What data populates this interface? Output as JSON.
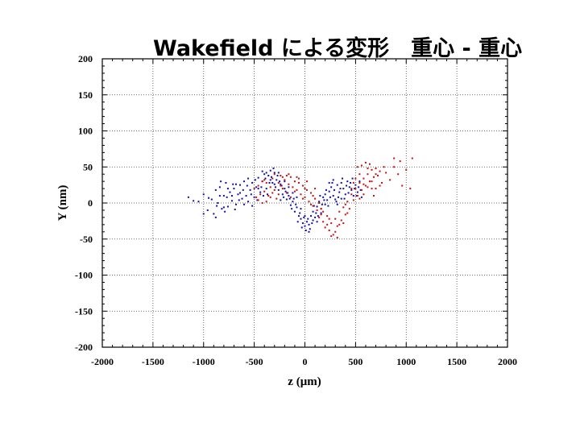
{
  "chart_data": {
    "type": "scatter",
    "title": "Wakefield による変形　重心 - 重心",
    "xlabel": "z (μm)",
    "ylabel": "Y (nm)",
    "xlim": [
      -2000,
      2000
    ],
    "ylim": [
      -200,
      200
    ],
    "xticks": [
      -2000,
      -1500,
      -1000,
      -500,
      0,
      500,
      1000,
      1500,
      2000
    ],
    "yticks": [
      200,
      150,
      100,
      50,
      0,
      -50,
      -100,
      -150,
      -200
    ],
    "xtick_labels": [
      "-2000",
      "-1500",
      "-1000",
      "-500",
      "0",
      "500",
      "1000",
      "1500",
      "2000"
    ],
    "ytick_labels": [
      "200",
      "150",
      "100",
      "50",
      "0",
      "-50",
      "-100",
      "-150",
      "-200"
    ],
    "grid": true,
    "series": [
      {
        "name": "blue",
        "color": "#1010a8",
        "points": [
          [
            -1150,
            8
          ],
          [
            -1100,
            3
          ],
          [
            -1050,
            2
          ],
          [
            -1000,
            12
          ],
          [
            -960,
            -10
          ],
          [
            -920,
            5
          ],
          [
            -900,
            -15
          ],
          [
            -880,
            18
          ],
          [
            -860,
            0
          ],
          [
            -840,
            22
          ],
          [
            -820,
            -8
          ],
          [
            -800,
            10
          ],
          [
            -780,
            28
          ],
          [
            -760,
            -5
          ],
          [
            -740,
            15
          ],
          [
            -720,
            3
          ],
          [
            -700,
            20
          ],
          [
            -680,
            -2
          ],
          [
            -660,
            12
          ],
          [
            -640,
            25
          ],
          [
            -620,
            6
          ],
          [
            -600,
            30
          ],
          [
            -580,
            10
          ],
          [
            -560,
            2
          ],
          [
            -540,
            18
          ],
          [
            -520,
            28
          ],
          [
            -500,
            8
          ],
          [
            -480,
            22
          ],
          [
            -460,
            35
          ],
          [
            -440,
            15
          ],
          [
            -420,
            30
          ],
          [
            -400,
            40
          ],
          [
            -380,
            20
          ],
          [
            -360,
            38
          ],
          [
            -340,
            45
          ],
          [
            -320,
            28
          ],
          [
            -300,
            42
          ],
          [
            -280,
            32
          ],
          [
            -260,
            18
          ],
          [
            -240,
            26
          ],
          [
            -220,
            12
          ],
          [
            -200,
            20
          ],
          [
            -180,
            5
          ],
          [
            -160,
            10
          ],
          [
            -140,
            -3
          ],
          [
            -120,
            2
          ],
          [
            -100,
            -12
          ],
          [
            -80,
            -6
          ],
          [
            -60,
            -18
          ],
          [
            -40,
            -22
          ],
          [
            -20,
            -28
          ],
          [
            0,
            -32
          ],
          [
            20,
            -26
          ],
          [
            40,
            -30
          ],
          [
            60,
            -18
          ],
          [
            80,
            -12
          ],
          [
            100,
            -20
          ],
          [
            120,
            -5
          ],
          [
            140,
            2
          ],
          [
            160,
            -8
          ],
          [
            180,
            8
          ],
          [
            200,
            12
          ],
          [
            220,
            4
          ],
          [
            240,
            16
          ],
          [
            260,
            22
          ],
          [
            280,
            10
          ],
          [
            300,
            5
          ],
          [
            320,
            25
          ],
          [
            340,
            15
          ],
          [
            360,
            28
          ],
          [
            380,
            20
          ],
          [
            400,
            12
          ],
          [
            420,
            30
          ],
          [
            440,
            22
          ],
          [
            460,
            18
          ],
          [
            480,
            10
          ],
          [
            500,
            25
          ],
          [
            520,
            15
          ],
          [
            540,
            30
          ],
          [
            560,
            8
          ],
          [
            -1000,
            -15
          ],
          [
            -950,
            7
          ],
          [
            -870,
            -4
          ],
          [
            -830,
            30
          ],
          [
            -790,
            -12
          ],
          [
            -770,
            8
          ],
          [
            -710,
            26
          ],
          [
            -690,
            -9
          ],
          [
            -650,
            4
          ],
          [
            -610,
            18
          ],
          [
            -570,
            24
          ],
          [
            -530,
            12
          ],
          [
            -490,
            32
          ],
          [
            -470,
            4
          ],
          [
            -430,
            22
          ],
          [
            -410,
            10
          ],
          [
            -390,
            34
          ],
          [
            -370,
            12
          ],
          [
            -350,
            28
          ],
          [
            -330,
            36
          ],
          [
            -310,
            48
          ],
          [
            -290,
            22
          ],
          [
            -270,
            38
          ],
          [
            -250,
            30
          ],
          [
            -230,
            24
          ],
          [
            -210,
            8
          ],
          [
            -190,
            16
          ],
          [
            -170,
            14
          ],
          [
            -150,
            6
          ],
          [
            -130,
            -8
          ],
          [
            -110,
            6
          ],
          [
            -90,
            -2
          ],
          [
            -70,
            -26
          ],
          [
            -50,
            -14
          ],
          [
            -30,
            -34
          ],
          [
            -10,
            -20
          ],
          [
            10,
            -38
          ],
          [
            30,
            -22
          ],
          [
            50,
            -36
          ],
          [
            70,
            -28
          ],
          [
            90,
            -4
          ],
          [
            110,
            -14
          ],
          [
            130,
            -18
          ],
          [
            150,
            10
          ],
          [
            170,
            -2
          ],
          [
            190,
            4
          ],
          [
            210,
            18
          ],
          [
            230,
            -4
          ],
          [
            250,
            8
          ],
          [
            270,
            28
          ],
          [
            290,
            18
          ],
          [
            310,
            2
          ],
          [
            330,
            8
          ],
          [
            350,
            20
          ],
          [
            370,
            34
          ],
          [
            390,
            6
          ],
          [
            410,
            24
          ],
          [
            430,
            14
          ],
          [
            450,
            28
          ],
          [
            470,
            34
          ],
          [
            490,
            20
          ],
          [
            510,
            10
          ],
          [
            530,
            22
          ],
          [
            550,
            18
          ],
          [
            -560,
            34
          ],
          [
            -520,
            -4
          ],
          [
            -460,
            20
          ],
          [
            -420,
            44
          ],
          [
            -380,
            42
          ],
          [
            -340,
            32
          ],
          [
            -300,
            26
          ],
          [
            -260,
            42
          ],
          [
            -240,
            4
          ],
          [
            -200,
            30
          ],
          [
            -160,
            22
          ],
          [
            -120,
            14
          ],
          [
            -80,
            8
          ],
          [
            -40,
            -8
          ],
          [
            0,
            -18
          ],
          [
            40,
            -40
          ],
          [
            80,
            -24
          ],
          [
            120,
            -26
          ],
          [
            160,
            -14
          ],
          [
            200,
            -2
          ],
          [
            240,
            28
          ],
          [
            280,
            32
          ],
          [
            320,
            -2
          ],
          [
            360,
            6
          ],
          [
            -600,
            -2
          ],
          [
            -640,
            14
          ],
          [
            -680,
            26
          ],
          [
            -720,
            10
          ],
          [
            -760,
            20
          ],
          [
            -800,
            -6
          ],
          [
            -840,
            10
          ],
          [
            -880,
            -20
          ]
        ]
      },
      {
        "name": "red",
        "color": "#c81010",
        "points": [
          [
            -500,
            20
          ],
          [
            -480,
            8
          ],
          [
            -460,
            24
          ],
          [
            -440,
            12
          ],
          [
            -420,
            0
          ],
          [
            -400,
            16
          ],
          [
            -380,
            28
          ],
          [
            -360,
            10
          ],
          [
            -340,
            22
          ],
          [
            -320,
            34
          ],
          [
            -300,
            18
          ],
          [
            -280,
            6
          ],
          [
            -260,
            28
          ],
          [
            -240,
            38
          ],
          [
            -220,
            20
          ],
          [
            -200,
            32
          ],
          [
            -180,
            14
          ],
          [
            -160,
            26
          ],
          [
            -140,
            36
          ],
          [
            -120,
            22
          ],
          [
            -100,
            30
          ],
          [
            -80,
            18
          ],
          [
            -60,
            28
          ],
          [
            -40,
            12
          ],
          [
            -20,
            24
          ],
          [
            0,
            8
          ],
          [
            20,
            18
          ],
          [
            40,
            2
          ],
          [
            60,
            14
          ],
          [
            80,
            -4
          ],
          [
            100,
            6
          ],
          [
            120,
            -10
          ],
          [
            140,
            -20
          ],
          [
            160,
            -8
          ],
          [
            180,
            -26
          ],
          [
            200,
            -34
          ],
          [
            220,
            -18
          ],
          [
            240,
            -38
          ],
          [
            260,
            -28
          ],
          [
            280,
            -44
          ],
          [
            300,
            -22
          ],
          [
            320,
            -32
          ],
          [
            340,
            -12
          ],
          [
            360,
            -24
          ],
          [
            380,
            -6
          ],
          [
            400,
            -16
          ],
          [
            420,
            2
          ],
          [
            440,
            -8
          ],
          [
            460,
            12
          ],
          [
            480,
            4
          ],
          [
            500,
            20
          ],
          [
            520,
            10
          ],
          [
            540,
            28
          ],
          [
            560,
            18
          ],
          [
            580,
            34
          ],
          [
            600,
            24
          ],
          [
            620,
            40
          ],
          [
            640,
            30
          ],
          [
            660,
            46
          ],
          [
            680,
            36
          ],
          [
            700,
            48
          ],
          [
            720,
            38
          ],
          [
            760,
            28
          ],
          [
            800,
            42
          ],
          [
            840,
            32
          ],
          [
            880,
            50
          ],
          [
            920,
            40
          ],
          [
            960,
            24
          ],
          [
            1000,
            46
          ],
          [
            1040,
            20
          ],
          [
            1060,
            62
          ],
          [
            940,
            58
          ],
          [
            880,
            62
          ],
          [
            780,
            50
          ],
          [
            740,
            24
          ],
          [
            700,
            20
          ],
          [
            660,
            30
          ],
          [
            620,
            22
          ],
          [
            580,
            12
          ],
          [
            540,
            40
          ],
          [
            -420,
            30
          ],
          [
            -380,
            2
          ],
          [
            -340,
            8
          ],
          [
            -300,
            40
          ],
          [
            -260,
            12
          ],
          [
            -220,
            36
          ],
          [
            -180,
            38
          ],
          [
            -140,
            8
          ],
          [
            -100,
            16
          ],
          [
            -60,
            34
          ],
          [
            -20,
            6
          ],
          [
            20,
            30
          ],
          [
            60,
            -2
          ],
          [
            100,
            20
          ],
          [
            140,
            0
          ],
          [
            180,
            -12
          ],
          [
            220,
            -30
          ],
          [
            260,
            -46
          ],
          [
            300,
            -40
          ],
          [
            340,
            -30
          ],
          [
            380,
            -28
          ],
          [
            420,
            -14
          ],
          [
            460,
            20
          ],
          [
            500,
            34
          ],
          [
            540,
            6
          ],
          [
            580,
            26
          ],
          [
            620,
            48
          ],
          [
            660,
            20
          ],
          [
            700,
            40
          ],
          [
            740,
            44
          ],
          [
            560,
            52
          ],
          [
            600,
            56
          ],
          [
            -460,
            4
          ],
          [
            -400,
            32
          ],
          [
            -320,
            14
          ],
          [
            -240,
            24
          ],
          [
            -160,
            40
          ],
          [
            -80,
            36
          ],
          [
            0,
            20
          ],
          [
            80,
            10
          ],
          [
            160,
            -16
          ],
          [
            240,
            -22
          ],
          [
            320,
            -48
          ],
          [
            400,
            -2
          ],
          [
            480,
            28
          ],
          [
            520,
            50
          ],
          [
            640,
            54
          ],
          [
            680,
            10
          ]
        ]
      }
    ]
  }
}
